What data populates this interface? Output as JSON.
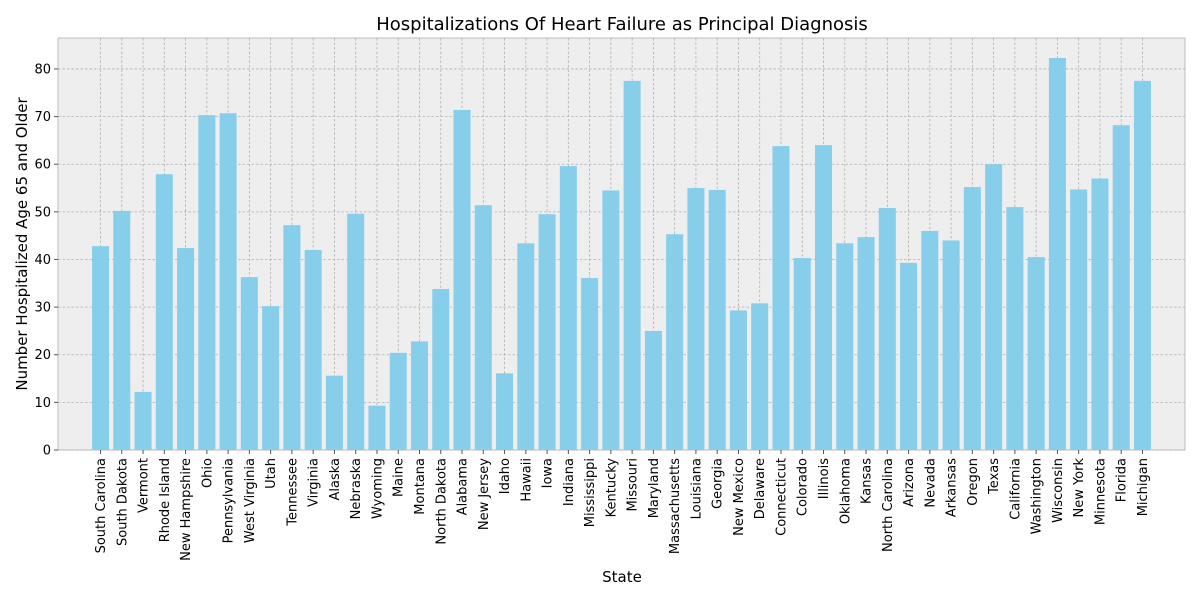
{
  "chart_data": {
    "type": "bar",
    "title": "Hospitalizations Of Heart Failure as Principal Diagnosis",
    "xlabel": "State",
    "ylabel": "Number Hospitalized Age 65 and Older",
    "ylim": [
      0,
      86.5
    ],
    "yticks": [
      0,
      10,
      20,
      30,
      40,
      50,
      60,
      70,
      80
    ],
    "grid": true,
    "bar_color": "#87ceeb",
    "background_color": "#eeeeee",
    "categories": [
      "South Carolina",
      "South Dakota",
      "Vermont",
      "Rhode Island",
      "New Hampshire",
      "Ohio",
      "Pennsylvania",
      "West Virginia",
      "Utah",
      "Tennessee",
      "Virginia",
      "Alaska",
      "Nebraska",
      "Wyoming",
      "Maine",
      "Montana",
      "North Dakota",
      "Alabama",
      "New Jersey",
      "Idaho",
      "Hawaii",
      "Iowa",
      "Indiana",
      "Mississippi",
      "Kentucky",
      "Missouri",
      "Maryland",
      "Massachusetts",
      "Louisiana",
      "Georgia",
      "New Mexico",
      "Delaware",
      "Connecticut",
      "Colorado",
      "Illinois",
      "Oklahoma",
      "Kansas",
      "North Carolina",
      "Arizona",
      "Nevada",
      "Arkansas",
      "Oregon",
      "Texas",
      "California",
      "Washington",
      "Wisconsin",
      "New York",
      "Minnesota",
      "Florida",
      "Michigan"
    ],
    "values": [
      42.8,
      50.2,
      12.2,
      57.9,
      42.4,
      70.3,
      70.7,
      36.3,
      30.2,
      47.2,
      42.0,
      15.6,
      49.6,
      9.3,
      20.4,
      22.8,
      33.8,
      71.4,
      51.4,
      16.1,
      43.4,
      49.5,
      59.6,
      36.1,
      54.5,
      77.5,
      25.0,
      45.3,
      55.0,
      54.6,
      29.3,
      30.8,
      63.8,
      40.3,
      64.0,
      43.4,
      44.7,
      50.8,
      39.3,
      46.0,
      44.0,
      55.2,
      60.0,
      51.0,
      40.5,
      82.3,
      54.7,
      57.0,
      68.2,
      77.5
    ]
  }
}
